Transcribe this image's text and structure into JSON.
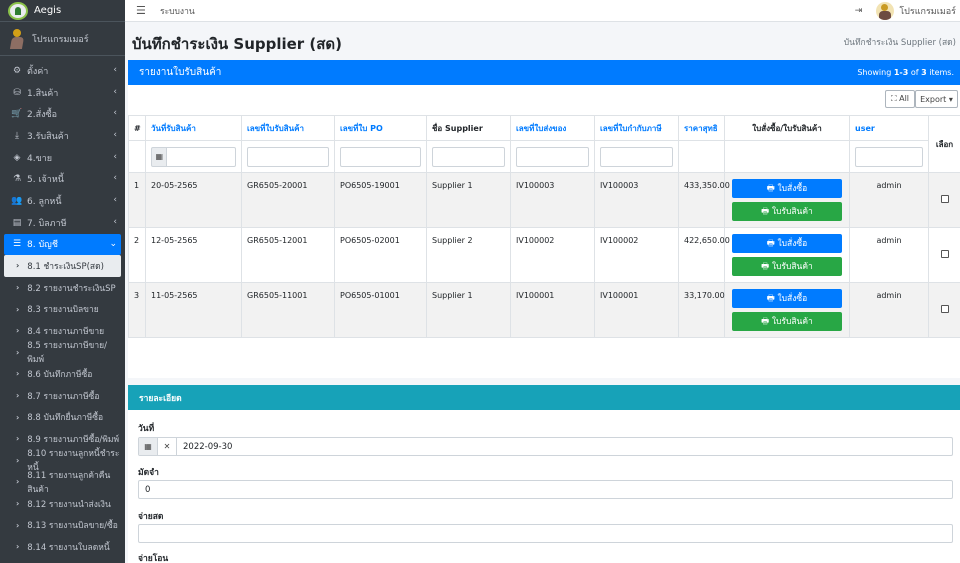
{
  "brand": {
    "name": "Aegis"
  },
  "user": {
    "name": "โปรแกรมเมอร์"
  },
  "sidebar": {
    "items": [
      {
        "icon": "cogs-icon",
        "glyph": "⚙",
        "label": "ตั้งค่า"
      },
      {
        "icon": "boxes-icon",
        "glyph": "⛁",
        "label": "1.สินค้า"
      },
      {
        "icon": "cart-icon",
        "glyph": "🛒",
        "label": "2.สั่งซื้อ"
      },
      {
        "icon": "download-icon",
        "glyph": "⤓",
        "label": "3.รับสินค้า"
      },
      {
        "icon": "tags-icon",
        "glyph": "◈",
        "label": "4.ขาย"
      },
      {
        "icon": "flask-icon",
        "glyph": "⚗",
        "label": "5. เจ้าหนี้"
      },
      {
        "icon": "users-icon",
        "glyph": "👥",
        "label": "6. ลูกหนี้"
      },
      {
        "icon": "file-icon",
        "glyph": "▤",
        "label": "7. บิลภาษี"
      },
      {
        "icon": "list-icon",
        "glyph": "☰",
        "label": "8. บัญชี"
      }
    ],
    "subitems": [
      "8.1 ชำระเงินSP(สด)",
      "8.2 รายงานชำระเงินSP",
      "8.3 รายงานบิลขาย",
      "8.4 รายงานภาษีขาย",
      "8.5 รายงานภาษีขาย/พิมพ์",
      "8.6 บันทึกภาษีซื้อ",
      "8.7 รายงานภาษีซื้อ",
      "8.8 บันทึกยื่นภาษีซื้อ",
      "8.9 รายงานภาษีซื้อ/พิมพ์",
      "8.10 รายงานลูกหนี้ชำระหนี้",
      "8.11 รายงานลูกค้าคืนสินค้า",
      "8.12 รายงานนำส่งเงิน",
      "8.13 รายงานบิลขาย/ซื้อ",
      "8.14 รายงานใบลดหนี้"
    ]
  },
  "topbar": {
    "system_label": "ระบบงาน"
  },
  "page": {
    "title": "บันทึกชำระเงิน Supplier (สด)",
    "breadcrumb": "บันทึกชำระเงิน Supplier (สด)"
  },
  "report": {
    "header": "รายงานใบรับสินค้า",
    "summary_prefix": "Showing ",
    "summary_range": "1-3",
    "summary_mid": " of ",
    "summary_total": "3",
    "summary_suffix": " items.",
    "btn_all": "⛶ All",
    "btn_export": "Export ▾",
    "columns": {
      "num": "#",
      "date": "วันที่รับสินค้า",
      "gr": "เลขที่ใบรับสินค้า",
      "po": "เลขที่ใบ PO",
      "supplier": "ชื่อ Supplier",
      "iv": "เลขที่ใบส่งของ",
      "tax": "เลขที่ใบกำกับภาษี",
      "net": "ราคาสุทธิ",
      "docs": "ใบสั่งซื้อ/ใบรับสินค้า",
      "user": "user",
      "select": "เลือก"
    },
    "btn_po": "🖶 ใบสั่งซื้อ",
    "btn_gr": "🖶 ใบรับสินค้า",
    "rows": [
      {
        "num": "1",
        "date": "20-05-2565",
        "gr": "GR6505-20001",
        "po": "PO6505-19001",
        "supplier": "Supplier 1",
        "iv": "IV100003",
        "tax": "IV100003",
        "net": "433,350.00",
        "user": "admin"
      },
      {
        "num": "2",
        "date": "12-05-2565",
        "gr": "GR6505-12001",
        "po": "PO6505-02001",
        "supplier": "Supplier 2",
        "iv": "IV100002",
        "tax": "IV100002",
        "net": "422,650.00",
        "user": "admin"
      },
      {
        "num": "3",
        "date": "11-05-2565",
        "gr": "GR6505-11001",
        "po": "PO6505-01001",
        "supplier": "Supplier 1",
        "iv": "IV100001",
        "tax": "IV100001",
        "net": "33,170.00",
        "user": "admin"
      }
    ]
  },
  "detail": {
    "header": "รายละเอียด",
    "date_label": "วันที่",
    "date_value": "2022-09-30",
    "deposit_label": "มัดจำ",
    "deposit_value": "0",
    "cash_label": "จ่ายสด",
    "cash_value": "",
    "transfer_label": "จ่ายโอน"
  },
  "colors": {
    "primary": "#007bff",
    "success": "#28a745",
    "info": "#17a2b8",
    "sidebar": "#343a40"
  }
}
